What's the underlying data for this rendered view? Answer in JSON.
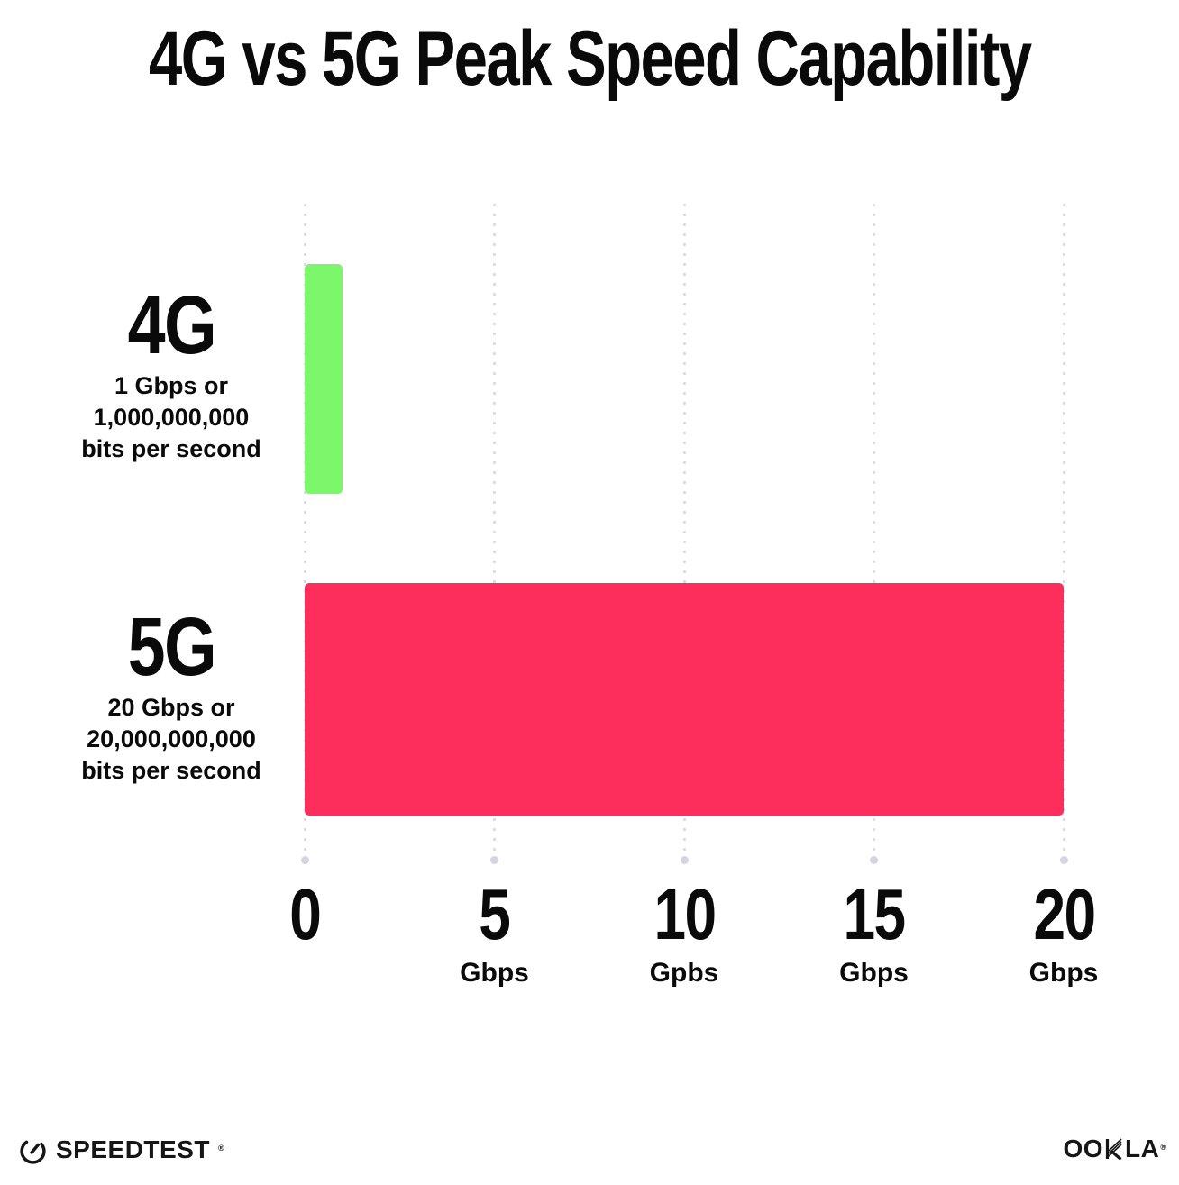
{
  "title": "4G vs 5G Peak Speed Capability",
  "chart_data": {
    "type": "bar",
    "orientation": "horizontal",
    "title": "4G vs 5G Peak Speed Capability",
    "categories": [
      "4G",
      "5G"
    ],
    "values": [
      1,
      20
    ],
    "value_unit": "Gbps",
    "xlabel": "",
    "ylabel": "",
    "xlim": [
      0,
      20
    ],
    "x_tick_values": [
      0,
      5,
      10,
      15,
      20
    ],
    "grid": "vertical dotted gridlines with round end dots, no axis lines",
    "legend": "none",
    "bars": [
      {
        "label": "4G",
        "value_gbps": 1,
        "color": "#7CF76C",
        "desc_lines": [
          "1 Gbps or",
          "1,000,000,000",
          "bits per second"
        ]
      },
      {
        "label": "5G",
        "value_gbps": 20,
        "color": "#FD2D5C",
        "desc_lines": [
          "20 Gbps or",
          "20,000,000,000",
          "bits per second"
        ]
      }
    ],
    "x_ticks": [
      {
        "number": "0",
        "unit": ""
      },
      {
        "number": "5",
        "unit": "Gbps"
      },
      {
        "number": "10",
        "unit": "Gpbs"
      },
      {
        "number": "15",
        "unit": "Gbps"
      },
      {
        "number": "20",
        "unit": "Gbps"
      }
    ]
  },
  "footer": {
    "speedtest_label": "SPEEDTEST",
    "speedtest_tm": "®",
    "ookla_oo": "OO",
    "ookla_la": "LA",
    "ookla_tm": "®"
  },
  "colors": {
    "bar_4g": "#7CF76C",
    "bar_5g": "#FD2D5C",
    "gridline_dot": "#D9D9E6",
    "text": "#0A0A0A",
    "background": "#FFFFFF"
  }
}
